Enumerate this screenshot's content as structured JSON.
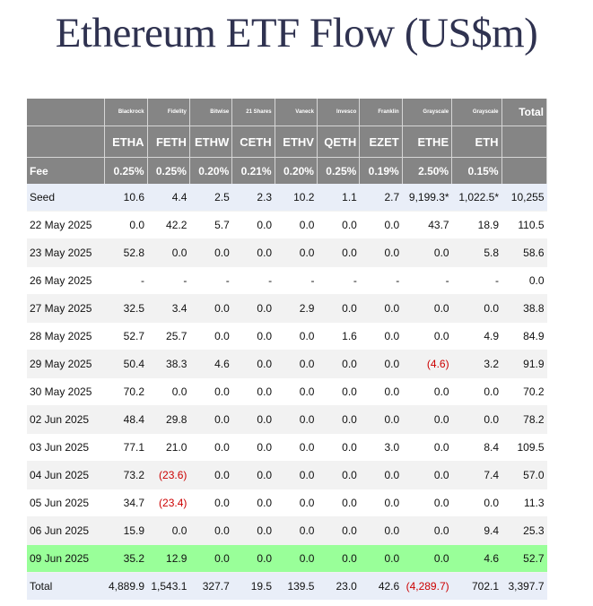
{
  "title": "Ethereum ETF Flow (US$m)",
  "chart_data": {
    "type": "table",
    "columns": [
      {
        "issuer": "Blackrock",
        "ticker": "ETHA",
        "fee": "0.25%"
      },
      {
        "issuer": "Fidelity",
        "ticker": "FETH",
        "fee": "0.25%"
      },
      {
        "issuer": "Bitwise",
        "ticker": "ETHW",
        "fee": "0.20%"
      },
      {
        "issuer": "21 Shares",
        "ticker": "CETH",
        "fee": "0.21%"
      },
      {
        "issuer": "Vaneck",
        "ticker": "ETHV",
        "fee": "0.20%"
      },
      {
        "issuer": "Invesco",
        "ticker": "QETH",
        "fee": "0.25%"
      },
      {
        "issuer": "Franklin",
        "ticker": "EZET",
        "fee": "0.19%"
      },
      {
        "issuer": "Grayscale",
        "ticker": "ETHE",
        "fee": "2.50%"
      },
      {
        "issuer": "Grayscale",
        "ticker": "ETH",
        "fee": "0.15%"
      }
    ],
    "total_header": "Total",
    "fee_label": "Fee",
    "rows": [
      {
        "label": "Seed",
        "values": [
          "10.6",
          "4.4",
          "2.5",
          "2.3",
          "10.2",
          "1.1",
          "2.7",
          "9,199.3*",
          "1,022.5*"
        ],
        "total": "10,255",
        "style": "seed"
      },
      {
        "label": "22 May 2025",
        "values": [
          "0.0",
          "42.2",
          "5.7",
          "0.0",
          "0.0",
          "0.0",
          "0.0",
          "43.7",
          "18.9"
        ],
        "total": "110.5",
        "style": "plain"
      },
      {
        "label": "23 May 2025",
        "values": [
          "52.8",
          "0.0",
          "0.0",
          "0.0",
          "0.0",
          "0.0",
          "0.0",
          "0.0",
          "5.8"
        ],
        "total": "58.6",
        "style": "alt"
      },
      {
        "label": "26 May 2025",
        "values": [
          "-",
          "-",
          "-",
          "-",
          "-",
          "-",
          "-",
          "-",
          "-"
        ],
        "total": "0.0",
        "style": "plain"
      },
      {
        "label": "27 May 2025",
        "values": [
          "32.5",
          "3.4",
          "0.0",
          "0.0",
          "2.9",
          "0.0",
          "0.0",
          "0.0",
          "0.0"
        ],
        "total": "38.8",
        "style": "alt"
      },
      {
        "label": "28 May 2025",
        "values": [
          "52.7",
          "25.7",
          "0.0",
          "0.0",
          "0.0",
          "1.6",
          "0.0",
          "0.0",
          "4.9"
        ],
        "total": "84.9",
        "style": "plain"
      },
      {
        "label": "29 May 2025",
        "values": [
          "50.4",
          "38.3",
          "4.6",
          "0.0",
          "0.0",
          "0.0",
          "0.0",
          "(4.6)",
          "3.2"
        ],
        "total": "91.9",
        "style": "alt"
      },
      {
        "label": "30 May 2025",
        "values": [
          "70.2",
          "0.0",
          "0.0",
          "0.0",
          "0.0",
          "0.0",
          "0.0",
          "0.0",
          "0.0"
        ],
        "total": "70.2",
        "style": "plain"
      },
      {
        "label": "02 Jun 2025",
        "values": [
          "48.4",
          "29.8",
          "0.0",
          "0.0",
          "0.0",
          "0.0",
          "0.0",
          "0.0",
          "0.0"
        ],
        "total": "78.2",
        "style": "alt"
      },
      {
        "label": "03 Jun 2025",
        "values": [
          "77.1",
          "21.0",
          "0.0",
          "0.0",
          "0.0",
          "0.0",
          "3.0",
          "0.0",
          "8.4"
        ],
        "total": "109.5",
        "style": "plain"
      },
      {
        "label": "04 Jun 2025",
        "values": [
          "73.2",
          "(23.6)",
          "0.0",
          "0.0",
          "0.0",
          "0.0",
          "0.0",
          "0.0",
          "7.4"
        ],
        "total": "57.0",
        "style": "alt"
      },
      {
        "label": "05 Jun 2025",
        "values": [
          "34.7",
          "(23.4)",
          "0.0",
          "0.0",
          "0.0",
          "0.0",
          "0.0",
          "0.0",
          "0.0"
        ],
        "total": "11.3",
        "style": "plain"
      },
      {
        "label": "06 Jun 2025",
        "values": [
          "15.9",
          "0.0",
          "0.0",
          "0.0",
          "0.0",
          "0.0",
          "0.0",
          "0.0",
          "9.4"
        ],
        "total": "25.3",
        "style": "alt"
      },
      {
        "label": "09 Jun 2025",
        "values": [
          "35.2",
          "12.9",
          "0.0",
          "0.0",
          "0.0",
          "0.0",
          "0.0",
          "0.0",
          "4.6"
        ],
        "total": "52.7",
        "style": "highlight"
      },
      {
        "label": "Total",
        "values": [
          "4,889.9",
          "1,543.1",
          "327.7",
          "19.5",
          "139.5",
          "23.0",
          "42.6",
          "(4,289.7)",
          "702.1"
        ],
        "total": "3,397.7",
        "style": "total"
      }
    ]
  }
}
